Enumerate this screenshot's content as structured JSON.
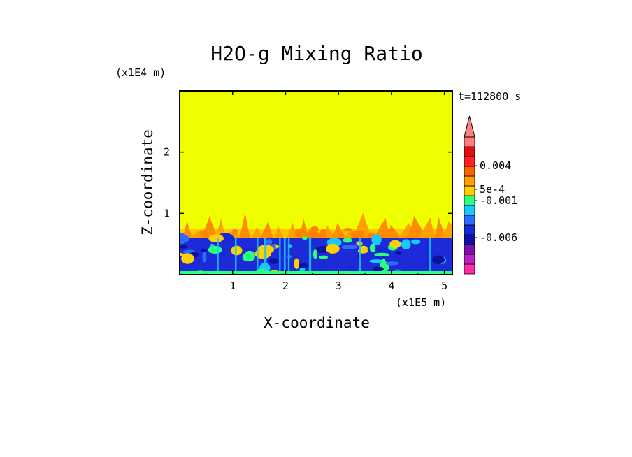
{
  "chart_data": {
    "type": "heatmap",
    "title": "H2O-g Mixing Ratio",
    "xlabel": "X-coordinate",
    "ylabel": "Z-coordinate",
    "x_scale_label": "(x1E5 m)",
    "y_scale_label": "(x1E4 m)",
    "time_label": "t=112800 s",
    "xlim": [
      0,
      5.15
    ],
    "ylim": [
      0,
      3.0
    ],
    "x_ticks": [
      1,
      2,
      3,
      4,
      5
    ],
    "y_ticks": [
      1,
      2
    ],
    "x_tick_labels": [
      "1",
      "2",
      "3",
      "4",
      "5"
    ],
    "y_tick_labels": [
      "1",
      "2"
    ],
    "background_value_color": "#f0ff00",
    "layers": [
      {
        "kind": "orange_band",
        "z_bottom": 0.6,
        "z_top": 0.75,
        "color": "#ffa000"
      },
      {
        "kind": "blue_turbulent_layer",
        "z_bottom": 0.0,
        "z_top": 0.6,
        "color": "#1a24e0"
      }
    ],
    "colorbar": {
      "colors": [
        "#ff2aa8",
        "#c01ec8",
        "#7a10b0",
        "#1010a0",
        "#1428d8",
        "#2c6cff",
        "#19c8ff",
        "#2cff7a",
        "#ffd000",
        "#ffa000",
        "#ff6000",
        "#ff2020",
        "#e01010",
        "#ff7c7c"
      ],
      "tick_labels": [
        "0.004",
        "5e-4",
        "-0.001",
        "-0.006"
      ],
      "tick_values": [
        0.004,
        0.0005,
        -0.001,
        -0.006
      ],
      "extend_arrow_color": "#ff8080"
    }
  }
}
